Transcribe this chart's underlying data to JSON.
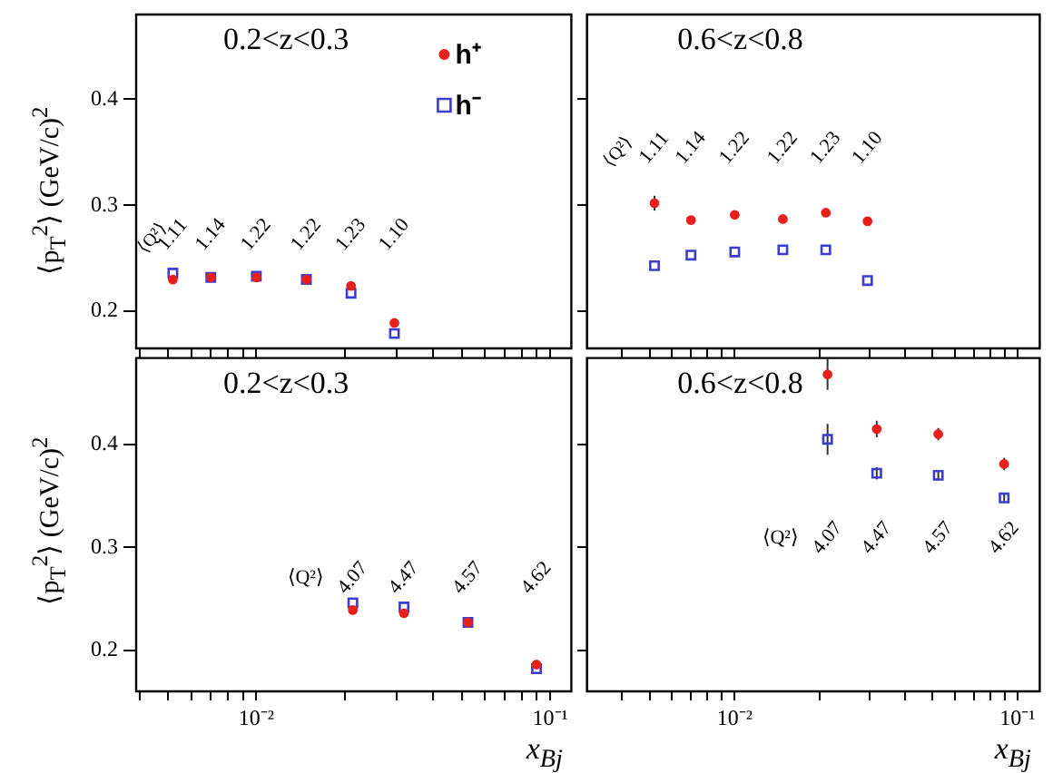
{
  "chart_data": [
    {
      "type": "scatter",
      "title": "0.2<z<0.3",
      "ylabel": "⟨p$_{T}$$^{2}$⟩ (GeV/c)$^{2}$",
      "log": "x",
      "tick_labels": "y",
      "legend": "top right",
      "xlim": [
        0.0039,
        0.118
      ],
      "ylim": [
        0.165,
        0.48
      ],
      "yticks": [
        0.2,
        0.3,
        0.4
      ],
      "xticks": [
        {
          "value": 0.004,
          "label": null
        },
        {
          "value": 0.005,
          "label": null
        },
        {
          "value": 0.006,
          "label": null
        },
        {
          "value": 0.007,
          "label": null
        },
        {
          "value": 0.008,
          "label": null
        },
        {
          "value": 0.009,
          "label": null
        },
        {
          "value": 0.01,
          "label": null
        },
        {
          "value": 0.02,
          "label": null
        },
        {
          "value": 0.03,
          "label": null
        },
        {
          "value": 0.04,
          "label": null
        },
        {
          "value": 0.05,
          "label": null
        },
        {
          "value": 0.06,
          "label": null
        },
        {
          "value": 0.07,
          "label": null
        },
        {
          "value": 0.08,
          "label": null
        },
        {
          "value": 0.09,
          "label": null
        },
        {
          "value": 0.1,
          "label": null
        }
      ],
      "x": [
        0.0052,
        0.007,
        0.01,
        0.0148,
        0.021,
        0.0295
      ],
      "series": [
        {
          "name": "h⁺",
          "color": "#e8201c",
          "marker": "circle",
          "values": [
            0.23,
            0.232,
            0.232,
            0.23,
            0.224,
            0.189
          ]
        },
        {
          "name": "h⁻",
          "color": "#3c3cd0",
          "marker": "square",
          "values": [
            0.236,
            0.232,
            0.233,
            0.23,
            0.217,
            0.179
          ]
        }
      ],
      "annotations": [
        "⟨Q²⟩",
        "1.11",
        "1.14",
        "1.22",
        "1.22",
        "1.23",
        "1.10"
      ]
    },
    {
      "type": "scatter",
      "title": "0.6<z<0.8",
      "log": "x",
      "tick_labels": false,
      "xlim": [
        0.003,
        0.12
      ],
      "ylim": [
        0.165,
        0.48
      ],
      "yticks": [
        0.2,
        0.3,
        0.4
      ],
      "xticks": [
        {
          "value": 0.004,
          "label": null
        },
        {
          "value": 0.005,
          "label": null
        },
        {
          "value": 0.006,
          "label": null
        },
        {
          "value": 0.007,
          "label": null
        },
        {
          "value": 0.008,
          "label": null
        },
        {
          "value": 0.009,
          "label": null
        },
        {
          "value": 0.01,
          "label": null
        },
        {
          "value": 0.02,
          "label": null
        },
        {
          "value": 0.03,
          "label": null
        },
        {
          "value": 0.04,
          "label": null
        },
        {
          "value": 0.05,
          "label": null
        },
        {
          "value": 0.06,
          "label": null
        },
        {
          "value": 0.07,
          "label": null
        },
        {
          "value": 0.08,
          "label": null
        },
        {
          "value": 0.09,
          "label": null
        },
        {
          "value": 0.1,
          "label": null
        }
      ],
      "x": [
        0.0052,
        0.007,
        0.01,
        0.0148,
        0.021,
        0.0295
      ],
      "series": [
        {
          "color": "#e8201c",
          "marker": "circle",
          "values": [
            0.302,
            0.286,
            0.291,
            0.287,
            0.293,
            0.285
          ],
          "errors": [
            0.007,
            null,
            null,
            null,
            null,
            null
          ]
        },
        {
          "color": "#3c3cd0",
          "marker": "square",
          "values": [
            0.243,
            0.253,
            0.256,
            0.258,
            0.258,
            0.229
          ]
        }
      ],
      "annotations": [
        "⟨Q²⟩",
        "1.11",
        "1.14",
        "1.22",
        "1.22",
        "1.23",
        "1.10"
      ]
    },
    {
      "type": "scatter",
      "title": "0.2<z<0.3",
      "ylabel": "⟨p$_{T}$$^{2}$⟩ (GeV/c)$^{2}$",
      "xlabel": "x$_{Bj}$",
      "log": "x",
      "xlim": [
        0.0039,
        0.118
      ],
      "ylim": [
        0.16,
        0.484
      ],
      "yticks": [
        0.2,
        0.3,
        0.4
      ],
      "xticks": [
        {
          "value": 0.004,
          "label": null
        },
        {
          "value": 0.005,
          "label": null
        },
        {
          "value": 0.006,
          "label": null
        },
        {
          "value": 0.007,
          "label": null
        },
        {
          "value": 0.008,
          "label": null
        },
        {
          "value": 0.009,
          "label": null
        },
        {
          "value": 0.01,
          "label": "10⁻²"
        },
        {
          "value": 0.02,
          "label": null
        },
        {
          "value": 0.03,
          "label": null
        },
        {
          "value": 0.04,
          "label": null
        },
        {
          "value": 0.05,
          "label": null
        },
        {
          "value": 0.06,
          "label": null
        },
        {
          "value": 0.07,
          "label": null
        },
        {
          "value": 0.08,
          "label": null
        },
        {
          "value": 0.09,
          "label": null
        },
        {
          "value": 0.1,
          "label": "10⁻¹"
        }
      ],
      "x": [
        0.0213,
        0.0318,
        0.0525,
        0.0898
      ],
      "series": [
        {
          "color": "#e8201c",
          "marker": "circle",
          "values": [
            0.239,
            0.236,
            0.227,
            0.186
          ]
        },
        {
          "color": "#3c3cd0",
          "marker": "square",
          "values": [
            0.246,
            0.242,
            0.227,
            0.182
          ]
        }
      ],
      "annotations": [
        "⟨Q²⟩",
        "4.07",
        "4.47",
        "4.57",
        "4.62"
      ]
    },
    {
      "type": "scatter",
      "title": "0.6<z<0.8",
      "xlabel": "x$_{Bj}$",
      "log": "x",
      "tick_labels": "x",
      "xlim": [
        0.003,
        0.12
      ],
      "ylim": [
        0.16,
        0.484
      ],
      "yticks": [
        0.2,
        0.3,
        0.4
      ],
      "xticks": [
        {
          "value": 0.004,
          "label": null
        },
        {
          "value": 0.005,
          "label": null
        },
        {
          "value": 0.006,
          "label": null
        },
        {
          "value": 0.007,
          "label": null
        },
        {
          "value": 0.008,
          "label": null
        },
        {
          "value": 0.009,
          "label": null
        },
        {
          "value": 0.01,
          "label": "10⁻²"
        },
        {
          "value": 0.02,
          "label": null
        },
        {
          "value": 0.03,
          "label": null
        },
        {
          "value": 0.04,
          "label": null
        },
        {
          "value": 0.05,
          "label": null
        },
        {
          "value": 0.06,
          "label": null
        },
        {
          "value": 0.07,
          "label": null
        },
        {
          "value": 0.08,
          "label": null
        },
        {
          "value": 0.09,
          "label": null
        },
        {
          "value": 0.1,
          "label": "10⁻¹"
        }
      ],
      "x": [
        0.0213,
        0.0318,
        0.0525,
        0.0898
      ],
      "series": [
        {
          "color": "#e8201c",
          "marker": "circle",
          "values": [
            0.468,
            0.415,
            0.41,
            0.381
          ],
          "errors": [
            0.015,
            0.008,
            0.006,
            0.006
          ]
        },
        {
          "color": "#3c3cd0",
          "marker": "square",
          "values": [
            0.405,
            0.372,
            0.37,
            0.348
          ],
          "errors": [
            0.015,
            0.006,
            0.005,
            0.004
          ]
        }
      ],
      "annotations": [
        "⟨Q²⟩",
        "4.07",
        "4.47",
        "4.57",
        "4.62"
      ]
    }
  ]
}
